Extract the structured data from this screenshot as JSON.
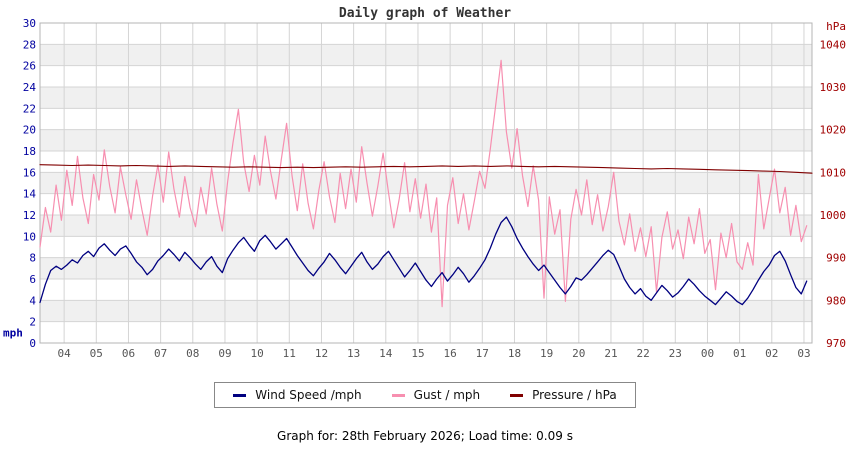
{
  "title": "Daily graph of Weather",
  "footer": "Graph for: 28th February 2026; Load time: 0.09 s",
  "legend": [
    {
      "label": "Wind Speed /mph",
      "color": "#000080"
    },
    {
      "label": "Gust / mph",
      "color": "#f78fb0"
    },
    {
      "label": "Pressure / hPa",
      "color": "#800000"
    }
  ],
  "chart_data": {
    "type": "line",
    "title": "Daily graph of Weather",
    "x_axis": {
      "labels": [
        "04",
        "05",
        "06",
        "07",
        "08",
        "09",
        "10",
        "11",
        "12",
        "13",
        "14",
        "15",
        "16",
        "17",
        "18",
        "19",
        "20",
        "21",
        "22",
        "23",
        "00",
        "01",
        "02",
        "03"
      ],
      "start_hour": 3.25,
      "end_hour": 27.25,
      "label_color": "#555555",
      "grid": true
    },
    "y_left": {
      "label": "mph",
      "min": 0,
      "max": 30,
      "tick_step": 2,
      "color": "#0000a0"
    },
    "y_right": {
      "label": "hPa",
      "min": 970,
      "max": 1045,
      "ticks": [
        970,
        980,
        990,
        1000,
        1010,
        1020,
        1030,
        1040
      ],
      "color": "#a00000"
    },
    "plot_style": {
      "band_fill": "#f0f0f0",
      "grid_color": "#d4d4d4",
      "border_color": "#b4b4b4"
    },
    "series": [
      {
        "name": "Gust / mph",
        "axis": "left",
        "color": "#f78fb0",
        "width": 1.2,
        "start_hour": 3.25,
        "step_hours": 0.16667,
        "values": [
          9.0,
          12.7,
          10.4,
          14.8,
          11.5,
          16.2,
          12.9,
          17.5,
          13.6,
          11.2,
          15.8,
          13.4,
          18.1,
          14.7,
          12.2,
          16.5,
          13.9,
          11.6,
          15.3,
          12.5,
          10.1,
          13.8,
          16.7,
          13.2,
          17.9,
          14.4,
          11.8,
          15.6,
          12.7,
          10.9,
          14.6,
          12.1,
          16.4,
          13.0,
          10.5,
          15.1,
          18.8,
          21.9,
          16.9,
          14.2,
          17.6,
          14.8,
          19.4,
          16.1,
          13.5,
          17.2,
          20.6,
          15.7,
          12.4,
          16.8,
          13.1,
          10.7,
          14.3,
          17.0,
          13.7,
          11.3,
          15.9,
          12.6,
          16.3,
          13.2,
          18.4,
          15.0,
          11.9,
          14.7,
          17.8,
          14.1,
          10.8,
          13.5,
          16.9,
          12.3,
          15.4,
          11.7,
          14.9,
          10.4,
          13.6,
          3.4,
          12.9,
          15.5,
          11.2,
          14.0,
          10.6,
          13.3,
          16.1,
          14.5,
          18.2,
          22.3,
          26.5,
          19.8,
          16.4,
          20.1,
          15.7,
          12.8,
          16.6,
          13.4,
          4.2,
          13.7,
          10.2,
          12.5,
          3.9,
          11.6,
          14.4,
          12.0,
          15.3,
          11.1,
          13.9,
          10.5,
          12.8,
          16.0,
          11.4,
          9.2,
          12.1,
          8.6,
          10.8,
          8.1,
          10.9,
          4.8,
          9.9,
          12.3,
          8.8,
          10.6,
          7.9,
          11.8,
          9.3,
          12.6,
          8.4,
          9.7,
          5.0,
          10.3,
          8.0,
          11.2,
          7.6,
          6.9,
          9.4,
          7.3,
          15.8,
          10.7,
          13.5,
          16.3,
          12.2,
          14.6,
          10.1,
          12.9,
          9.5,
          11.0
        ]
      },
      {
        "name": "Wind Speed /mph",
        "axis": "left",
        "color": "#000080",
        "width": 1.3,
        "start_hour": 3.25,
        "step_hours": 0.16667,
        "values": [
          3.8,
          5.5,
          6.8,
          7.2,
          6.9,
          7.3,
          7.8,
          7.5,
          8.2,
          8.6,
          8.1,
          8.9,
          9.3,
          8.7,
          8.2,
          8.8,
          9.1,
          8.4,
          7.6,
          7.1,
          6.4,
          6.9,
          7.7,
          8.2,
          8.8,
          8.3,
          7.7,
          8.5,
          8.0,
          7.4,
          6.9,
          7.6,
          8.1,
          7.2,
          6.6,
          7.9,
          8.7,
          9.4,
          9.9,
          9.2,
          8.6,
          9.6,
          10.1,
          9.5,
          8.8,
          9.3,
          9.8,
          9.0,
          8.2,
          7.5,
          6.8,
          6.3,
          7.0,
          7.6,
          8.4,
          7.8,
          7.1,
          6.5,
          7.2,
          7.9,
          8.5,
          7.6,
          6.9,
          7.4,
          8.1,
          8.6,
          7.8,
          7.0,
          6.2,
          6.8,
          7.5,
          6.7,
          5.9,
          5.3,
          6.0,
          6.6,
          5.8,
          6.4,
          7.1,
          6.5,
          5.7,
          6.3,
          7.0,
          7.8,
          8.9,
          10.2,
          11.3,
          11.8,
          10.9,
          9.8,
          8.9,
          8.1,
          7.4,
          6.8,
          7.3,
          6.6,
          5.9,
          5.2,
          4.6,
          5.3,
          6.1,
          5.9,
          6.4,
          7.0,
          7.6,
          8.2,
          8.7,
          8.3,
          7.2,
          6.0,
          5.2,
          4.6,
          5.1,
          4.4,
          4.0,
          4.7,
          5.4,
          4.9,
          4.3,
          4.7,
          5.3,
          6.0,
          5.5,
          4.9,
          4.4,
          4.0,
          3.6,
          4.2,
          4.8,
          4.4,
          3.9,
          3.6,
          4.2,
          5.0,
          5.9,
          6.7,
          7.3,
          8.2,
          8.6,
          7.7,
          6.4,
          5.2,
          4.6,
          5.8
        ]
      },
      {
        "name": "Pressure / hPa",
        "axis": "right",
        "color": "#800000",
        "width": 1.1,
        "start_hour": 3.25,
        "step_hours": 0.5,
        "values": [
          1011.8,
          1011.7,
          1011.6,
          1011.7,
          1011.6,
          1011.5,
          1011.6,
          1011.5,
          1011.4,
          1011.5,
          1011.4,
          1011.3,
          1011.2,
          1011.3,
          1011.2,
          1011.1,
          1011.2,
          1011.1,
          1011.2,
          1011.3,
          1011.2,
          1011.3,
          1011.4,
          1011.3,
          1011.4,
          1011.5,
          1011.4,
          1011.5,
          1011.4,
          1011.5,
          1011.4,
          1011.3,
          1011.4,
          1011.3,
          1011.2,
          1011.1,
          1011.0,
          1010.9,
          1010.8,
          1010.9,
          1010.8,
          1010.7,
          1010.6,
          1010.5,
          1010.4,
          1010.3,
          1010.2,
          1010.0,
          1009.8
        ]
      }
    ]
  }
}
